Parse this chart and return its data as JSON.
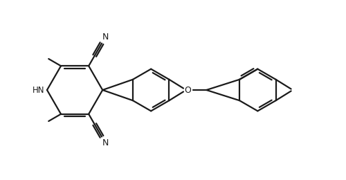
{
  "bg_color": "#ffffff",
  "line_color": "#1a1a1a",
  "line_width": 1.6,
  "figsize": [
    5.0,
    2.6
  ],
  "dpi": 100,
  "xlim": [
    0,
    10
  ],
  "ylim": [
    0,
    5.2
  ]
}
